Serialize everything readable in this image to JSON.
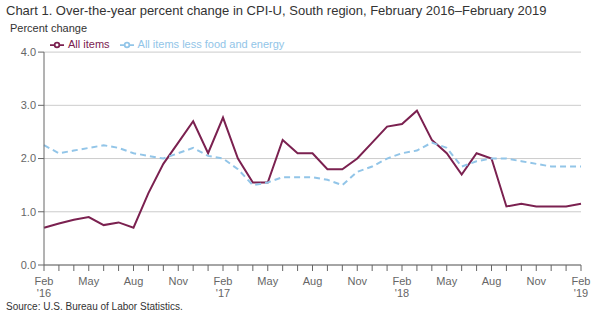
{
  "chart_data": {
    "type": "line",
    "title": "Chart 1. Over-the-year percent change in CPI-U, South region, February 2016–February 2019",
    "y_label": "Percent change",
    "source": "Source: U.S. Bureau of Labor Statistics.",
    "categories": [
      "Feb\n'16",
      null,
      null,
      "May",
      null,
      null,
      "Aug",
      null,
      null,
      "Nov",
      null,
      null,
      "Feb\n'17",
      null,
      null,
      "May",
      null,
      null,
      "Aug",
      null,
      null,
      "Nov",
      null,
      null,
      "Feb\n'18",
      null,
      null,
      "May",
      null,
      null,
      "Aug",
      null,
      null,
      "Nov",
      null,
      null,
      "Feb\n'19"
    ],
    "series": [
      {
        "name": "All items",
        "color": "#7B2150",
        "line_style": "solid",
        "values": [
          0.7,
          0.78,
          0.85,
          0.9,
          0.75,
          0.8,
          0.7,
          1.35,
          1.9,
          2.3,
          2.7,
          2.1,
          2.77,
          2.0,
          1.55,
          1.55,
          2.35,
          2.1,
          2.1,
          1.8,
          1.8,
          2.0,
          2.3,
          2.6,
          2.65,
          2.9,
          2.35,
          2.1,
          1.7,
          2.1,
          2.0,
          1.1,
          1.15,
          1.1,
          1.1,
          1.1,
          1.15
        ]
      },
      {
        "name": "All items less food and energy",
        "color": "#92C5E8",
        "line_style": "dashed",
        "values": [
          2.25,
          2.1,
          2.15,
          2.2,
          2.25,
          2.2,
          2.1,
          2.05,
          2.0,
          2.1,
          2.2,
          2.05,
          2.0,
          1.8,
          1.5,
          1.55,
          1.65,
          1.65,
          1.65,
          1.6,
          1.5,
          1.75,
          1.85,
          2.0,
          2.1,
          2.15,
          2.3,
          2.2,
          1.85,
          1.95,
          2.0,
          2.0,
          1.95,
          1.9,
          1.85,
          1.85,
          1.85
        ]
      }
    ],
    "ylim": [
      0.0,
      4.0
    ],
    "yticks": [
      {
        "value": 0.0,
        "label": "0.0"
      },
      {
        "value": 1.0,
        "label": "1.0"
      },
      {
        "value": 2.0,
        "label": "2.0"
      },
      {
        "value": 3.0,
        "label": "3.0"
      },
      {
        "value": 4.0,
        "label": "4.0"
      }
    ],
    "grid": true,
    "legend": "upper left"
  }
}
